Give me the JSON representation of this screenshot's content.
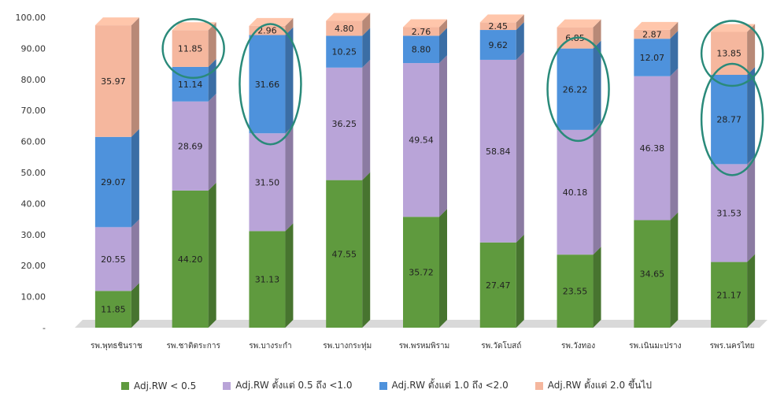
{
  "chart_data": {
    "type": "bar",
    "stacked": true,
    "three_d": true,
    "ylim": [
      0,
      100
    ],
    "y_ticks": [
      "-",
      "10.00",
      "20.00",
      "30.00",
      "40.00",
      "50.00",
      "60.00",
      "70.00",
      "80.00",
      "90.00",
      "100.00"
    ],
    "categories": [
      "รพ.พุทธชินราช",
      "รพ.ชาติตระการ",
      "รพ.บางระกำ",
      "รพ.บางกระทุ่ม",
      "รพ.พรหมพิราม",
      "รพ.วัดโบสถ์",
      "รพ.วังทอง",
      "รพ.เนินมะปราง",
      "รพร.นครไทย"
    ],
    "series": [
      {
        "name": "Adj.RW < 0.5",
        "color": "#5f9a3e",
        "values": [
          11.85,
          44.2,
          31.13,
          47.55,
          35.72,
          27.47,
          23.55,
          34.65,
          21.17
        ],
        "labels": [
          "11.85",
          "44.20",
          "31.13",
          "47.55",
          "35.72",
          "27.47",
          "23.55",
          "34.65",
          "21.17"
        ]
      },
      {
        "name": "Adj.RW ตั้งแต่ 0.5 ถึง <1.0",
        "color": "#b9a4d8",
        "values": [
          20.55,
          28.69,
          31.5,
          36.25,
          49.54,
          58.84,
          40.18,
          46.38,
          31.53
        ],
        "labels": [
          "20.55",
          "28.69",
          "31.50",
          "36.25",
          "49.54",
          "58.84",
          "40.18",
          "46.38",
          "31.53"
        ]
      },
      {
        "name": "Adj.RW ตั้งแต่ 1.0 ถึง <2.0",
        "color": "#4e92dc",
        "values": [
          29.07,
          11.14,
          31.66,
          10.25,
          8.8,
          9.62,
          26.22,
          12.07,
          28.77
        ],
        "labels": [
          "29.07",
          "11.14",
          "31.66",
          "10.25",
          "8.80",
          "9.62",
          "26.22",
          "12.07",
          "28.77"
        ]
      },
      {
        "name": "Adj.RW ตั้งแต่ 2.0 ขึ้นไป",
        "color": "#f5b79e",
        "values": [
          35.97,
          11.85,
          2.96,
          4.8,
          2.76,
          2.45,
          6.85,
          2.87,
          13.85
        ],
        "labels": [
          "35.97",
          "11.85",
          "2.96",
          "4.80",
          "2.76",
          "2.45",
          "6.85",
          "2.87",
          "13.85"
        ]
      }
    ],
    "highlights": [
      {
        "category_index": 1,
        "series_index": 3
      },
      {
        "category_index": 2,
        "series_index": 2
      },
      {
        "category_index": 6,
        "series_index": 2
      },
      {
        "category_index": 8,
        "series_index": 2
      },
      {
        "category_index": 8,
        "series_index": 3
      }
    ],
    "highlight_color": "#2a8a7a",
    "legend": {
      "position": "bottom"
    }
  }
}
